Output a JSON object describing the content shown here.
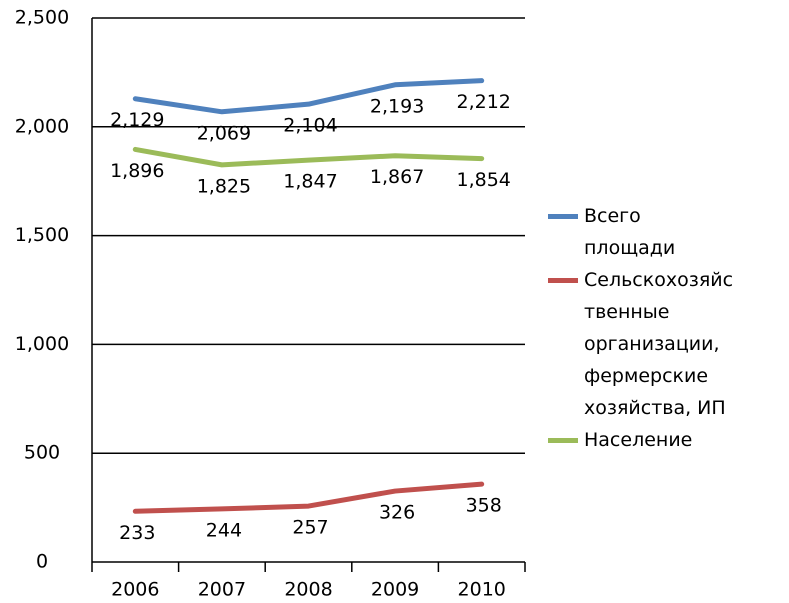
{
  "chart_data": {
    "type": "line",
    "categories": [
      "2006",
      "2007",
      "2008",
      "2009",
      "2010"
    ],
    "series": [
      {
        "name": "Всего площади",
        "color": "#4f81bd",
        "values": [
          2129,
          2069,
          2104,
          2193,
          2212
        ],
        "value_labels": [
          "2,129",
          "2,069",
          "2,104",
          "2,193",
          "2,212"
        ]
      },
      {
        "name": "Сельскохозяйственные организации, фермерские хозяйства, ИП",
        "color": "#c0504d",
        "values": [
          233,
          244,
          257,
          326,
          358
        ]
      },
      {
        "name": "Население",
        "color": "#9bbb59",
        "values": [
          1896,
          1825,
          1847,
          1867,
          1854
        ],
        "value_labels": [
          "1,896",
          "1,825",
          "1,847",
          "1,867",
          "1,854"
        ]
      }
    ],
    "ylim": [
      0,
      2500
    ],
    "yticks": [
      0,
      500,
      {
        "value": 1000,
        "label": "1,000"
      },
      {
        "value": 1500,
        "label": "1,500"
      },
      {
        "value": 2000,
        "label": "2,000"
      },
      {
        "value": 2500,
        "label": "2,500"
      }
    ],
    "grid": true,
    "legend": "right"
  }
}
